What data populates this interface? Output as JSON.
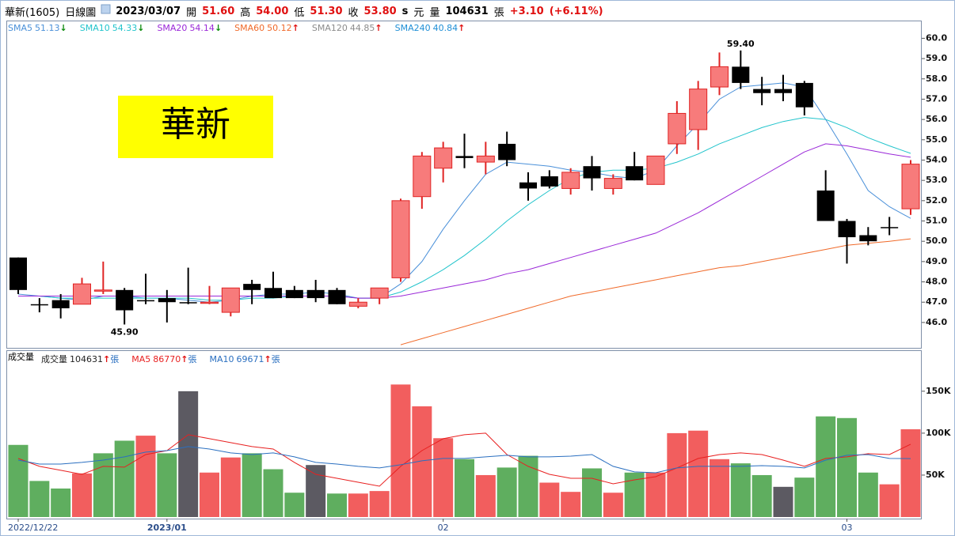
{
  "header": {
    "items": [
      {
        "text": "華新(1605)",
        "color": "#000",
        "bold": false
      },
      {
        "text": "日線圖",
        "color": "#000",
        "bold": false
      },
      {
        "text": "2023/03/07",
        "color": "#000",
        "bold": true
      },
      {
        "text": "開",
        "color": "#000",
        "bold": false
      },
      {
        "text": "51.60",
        "color": "#e01010",
        "bold": true
      },
      {
        "text": "高",
        "color": "#000",
        "bold": false
      },
      {
        "text": "54.00",
        "color": "#e01010",
        "bold": true
      },
      {
        "text": "低",
        "color": "#000",
        "bold": false
      },
      {
        "text": "51.30",
        "color": "#e01010",
        "bold": true
      },
      {
        "text": "收",
        "color": "#000",
        "bold": false
      },
      {
        "text": "53.80",
        "color": "#e01010",
        "bold": true
      },
      {
        "text": "s",
        "color": "#000",
        "bold": true
      },
      {
        "text": "元",
        "color": "#000",
        "bold": false
      },
      {
        "text": "量",
        "color": "#000",
        "bold": false
      },
      {
        "text": "104631",
        "color": "#000",
        "bold": true
      },
      {
        "text": "張",
        "color": "#000",
        "bold": false
      },
      {
        "text": "+3.10",
        "color": "#e01010",
        "bold": true
      },
      {
        "text": "(+6.11%)",
        "color": "#e01010",
        "bold": true
      }
    ]
  },
  "chart_data": [
    {
      "type": "candlestick",
      "annotation": "華新",
      "low_label": "45.90",
      "high_label": "59.40",
      "up_color": "#f77b7b",
      "up_edge": "#e02424",
      "down_color": "#000000",
      "categories": [
        "2022/12/22",
        null,
        null,
        null,
        null,
        null,
        null,
        "2023/01",
        null,
        null,
        null,
        null,
        null,
        null,
        null,
        null,
        null,
        null,
        null,
        null,
        "02",
        null,
        null,
        null,
        null,
        null,
        null,
        null,
        null,
        null,
        null,
        null,
        null,
        null,
        null,
        null,
        null,
        null,
        null,
        "03",
        null,
        null,
        null
      ],
      "open": [
        49.2,
        46.9,
        47.1,
        46.9,
        47.55,
        47.6,
        47.1,
        47.2,
        47.0,
        46.95,
        46.5,
        47.9,
        47.7,
        47.6,
        47.6,
        47.6,
        46.8,
        47.2,
        48.2,
        52.2,
        53.6,
        54.2,
        53.9,
        54.8,
        52.9,
        53.2,
        52.6,
        53.7,
        52.6,
        53.7,
        52.8,
        54.8,
        55.5,
        57.6,
        58.6,
        57.5,
        57.5,
        57.8,
        52.5,
        51.0,
        50.3,
        50.7,
        51.6
      ],
      "high": [
        49.2,
        47.2,
        47.4,
        48.2,
        49.0,
        47.7,
        48.4,
        47.6,
        48.7,
        47.8,
        47.7,
        48.1,
        48.5,
        47.8,
        48.1,
        47.7,
        47.2,
        47.7,
        52.1,
        54.4,
        54.9,
        55.3,
        54.9,
        55.4,
        53.4,
        53.5,
        53.6,
        54.2,
        53.3,
        54.4,
        54.2,
        56.9,
        57.9,
        59.3,
        59.4,
        58.1,
        58.2,
        57.9,
        53.5,
        51.1,
        50.7,
        51.2,
        54.0
      ],
      "low": [
        47.4,
        46.5,
        46.2,
        46.9,
        47.4,
        45.9,
        46.9,
        46.0,
        46.9,
        46.9,
        46.3,
        46.9,
        47.2,
        47.2,
        47.0,
        46.9,
        46.7,
        46.9,
        48.0,
        51.6,
        52.9,
        53.6,
        53.3,
        53.7,
        52.0,
        52.6,
        52.3,
        52.5,
        52.3,
        53.0,
        52.8,
        54.3,
        54.5,
        57.2,
        57.5,
        56.7,
        56.9,
        56.2,
        51.0,
        48.9,
        49.8,
        50.3,
        51.3
      ],
      "close": [
        47.6,
        46.85,
        46.7,
        47.9,
        47.6,
        46.6,
        47.1,
        47.0,
        46.95,
        47.0,
        47.7,
        47.6,
        47.2,
        47.2,
        47.2,
        46.9,
        47.0,
        47.7,
        52.0,
        54.2,
        54.6,
        54.1,
        54.2,
        54.0,
        52.6,
        52.7,
        53.4,
        53.1,
        53.1,
        53.0,
        54.2,
        56.3,
        57.5,
        58.6,
        57.8,
        57.3,
        57.3,
        56.6,
        51.0,
        50.2,
        50.0,
        50.7,
        53.8
      ],
      "ylim": [
        44.75,
        60.25
      ],
      "yticks": [
        {
          "value": 46,
          "label": "46.0"
        },
        {
          "value": 47,
          "label": "47.0"
        },
        {
          "value": 48,
          "label": "48.0"
        },
        {
          "value": 49,
          "label": "49.0"
        },
        {
          "value": 50,
          "label": "50.0"
        },
        {
          "value": 51,
          "label": "51.0"
        },
        {
          "value": 52,
          "label": "52.0"
        },
        {
          "value": 53,
          "label": "53.0"
        },
        {
          "value": 54,
          "label": "54.0"
        },
        {
          "value": 55,
          "label": "55.0"
        },
        {
          "value": 56,
          "label": "56.0"
        },
        {
          "value": 57,
          "label": "57.0"
        },
        {
          "value": 58,
          "label": "58.0"
        },
        {
          "value": 59,
          "label": "59.0"
        },
        {
          "value": 60,
          "label": "60.0"
        }
      ],
      "series": [
        {
          "name": "SMA5",
          "last": "51.13",
          "trend": "↓",
          "color": "#4a90d9",
          "values": [
            47.4,
            47.3,
            47.2,
            47.1,
            47.3,
            47.3,
            47.2,
            47.2,
            47.1,
            47.0,
            47.1,
            47.3,
            47.4,
            47.4,
            47.5,
            47.4,
            47.2,
            47.2,
            47.9,
            49.0,
            50.6,
            52.0,
            53.3,
            53.9,
            53.8,
            53.7,
            53.5,
            53.4,
            53.2,
            53.1,
            53.5,
            54.7,
            55.8,
            57.0,
            57.6,
            57.7,
            57.8,
            57.6,
            56.0,
            54.3,
            52.5,
            51.7,
            51.13
          ]
        },
        {
          "name": "SMA10",
          "last": "54.33",
          "trend": "↓",
          "color": "#22c4cc",
          "values": [
            47.3,
            47.3,
            47.2,
            47.2,
            47.2,
            47.2,
            47.2,
            47.2,
            47.2,
            47.1,
            47.1,
            47.2,
            47.2,
            47.3,
            47.3,
            47.3,
            47.2,
            47.2,
            47.5,
            48.0,
            48.6,
            49.3,
            50.1,
            51.0,
            51.8,
            52.5,
            53.1,
            53.4,
            53.5,
            53.5,
            53.6,
            53.9,
            54.3,
            54.8,
            55.2,
            55.6,
            55.9,
            56.1,
            56.0,
            55.6,
            55.1,
            54.7,
            54.33
          ]
        },
        {
          "name": "SMA20",
          "last": "54.14",
          "trend": "↓",
          "color": "#9a28d8",
          "values": [
            47.3,
            47.3,
            47.3,
            47.3,
            47.3,
            47.3,
            47.3,
            47.3,
            47.3,
            47.3,
            47.3,
            47.3,
            47.3,
            47.3,
            47.3,
            47.3,
            47.2,
            47.2,
            47.3,
            47.5,
            47.7,
            47.9,
            48.1,
            48.4,
            48.6,
            48.9,
            49.2,
            49.5,
            49.8,
            50.1,
            50.4,
            50.9,
            51.4,
            52.0,
            52.6,
            53.2,
            53.8,
            54.4,
            54.8,
            54.7,
            54.5,
            54.3,
            54.14
          ]
        },
        {
          "name": "SMA60",
          "last": "50.12",
          "trend": "↑",
          "color": "#f06a2a",
          "values": [
            null,
            null,
            null,
            null,
            null,
            null,
            null,
            null,
            null,
            null,
            null,
            null,
            null,
            null,
            null,
            null,
            null,
            null,
            44.9,
            45.2,
            45.5,
            45.8,
            46.1,
            46.4,
            46.7,
            47.0,
            47.3,
            47.5,
            47.7,
            47.9,
            48.1,
            48.3,
            48.5,
            48.7,
            48.8,
            49.0,
            49.2,
            49.4,
            49.6,
            49.8,
            49.9,
            50.0,
            50.12
          ]
        },
        {
          "name": "SMA120",
          "last": "44.85",
          "trend": "↑",
          "color": "#8c8c8c"
        },
        {
          "name": "SMA240",
          "last": "40.84",
          "trend": "↑",
          "color": "#1f8fd6"
        }
      ]
    },
    {
      "type": "bar",
      "title": "成交量",
      "ylim": [
        0,
        197000
      ],
      "yticks": [
        {
          "value": 50000,
          "label": "50K"
        },
        {
          "value": 100000,
          "label": "100K"
        },
        {
          "value": 150000,
          "label": "150K"
        }
      ],
      "series": [
        {
          "name": "成交量",
          "last": "104631",
          "trend": "↑",
          "unit": "張",
          "color": "#222222",
          "values": [
            86000,
            43000,
            34000,
            52000,
            76000,
            91000,
            97000,
            76000,
            150000,
            53000,
            71000,
            76000,
            57000,
            29000,
            62000,
            28000,
            28000,
            31000,
            158000,
            132000,
            94000,
            69000,
            50000,
            59000,
            73000,
            41000,
            30000,
            58000,
            29000,
            53000,
            53000,
            100000,
            103000,
            69000,
            64000,
            50000,
            36000,
            47000,
            120000,
            118000,
            53000,
            39000,
            104631
          ],
          "colors": [
            "#5fae5f",
            "#5fae5f",
            "#5fae5f",
            "#f25e5e",
            "#5fae5f",
            "#5fae5f",
            "#f25e5e",
            "#5fae5f",
            "#5c5a62",
            "#f25e5e",
            "#f25e5e",
            "#5fae5f",
            "#5fae5f",
            "#5fae5f",
            "#5c5a62",
            "#5fae5f",
            "#f25e5e",
            "#f25e5e",
            "#f25e5e",
            "#f25e5e",
            "#f25e5e",
            "#5fae5f",
            "#f25e5e",
            "#5fae5f",
            "#5fae5f",
            "#f25e5e",
            "#f25e5e",
            "#5fae5f",
            "#f25e5e",
            "#5fae5f",
            "#f25e5e",
            "#f25e5e",
            "#f25e5e",
            "#f25e5e",
            "#5fae5f",
            "#5fae5f",
            "#5c5a62",
            "#5fae5f",
            "#5fae5f",
            "#5fae5f",
            "#5fae5f",
            "#f25e5e",
            "#f25e5e"
          ]
        },
        {
          "name": "MA5",
          "last": "86770",
          "trend": "↑",
          "unit": "張",
          "color": "#e82020",
          "type": "line",
          "values": [
            69800,
            60400,
            55700,
            50900,
            60400,
            59500,
            74500,
            79200,
            98100,
            93400,
            88700,
            84000,
            81100,
            65100,
            50900,
            46200,
            41500,
            36800,
            60400,
            79200,
            93400,
            98100,
            100000,
            74500,
            60400,
            50900,
            46200,
            46200,
            39600,
            44300,
            48100,
            58500,
            69800,
            74500,
            76400,
            74500,
            67900,
            60400,
            69800,
            71700,
            75500,
            74500,
            86770
          ]
        },
        {
          "name": "MA10",
          "last": "69671",
          "trend": "↑",
          "unit": "張",
          "color": "#2a6fc0",
          "type": "line",
          "values": [
            67900,
            63200,
            63200,
            65100,
            67900,
            71700,
            77400,
            79200,
            84000,
            81100,
            76400,
            74500,
            76400,
            71700,
            65100,
            63200,
            60400,
            58500,
            62300,
            67000,
            69800,
            69800,
            71700,
            73600,
            71700,
            71700,
            72600,
            74500,
            60400,
            53800,
            52800,
            58500,
            60400,
            60400,
            60400,
            61300,
            60400,
            58500,
            67900,
            73600,
            74500,
            69800,
            69671
          ]
        }
      ]
    }
  ]
}
